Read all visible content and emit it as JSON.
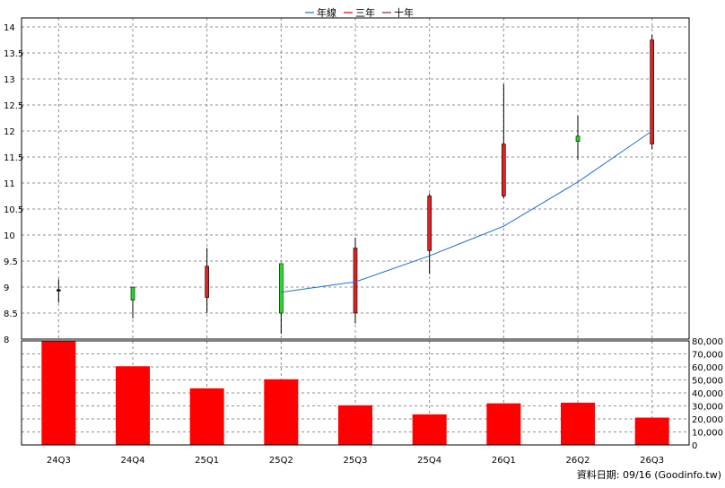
{
  "legend": [
    {
      "name": "年線",
      "color": "#1e6fd0"
    },
    {
      "name": "三年",
      "color": "#e00000"
    },
    {
      "name": "十年",
      "color": "#8b1a4a"
    }
  ],
  "footer": "資料日期: 09/16  (Goodinfo.tw)",
  "colors": {
    "up_candle": "#dd2222",
    "down_candle": "#22dd22",
    "volume_bar": "#ff0000",
    "ma_line": "#1e6fd0",
    "grid": "#909090"
  },
  "chart_data": [
    {
      "type": "candlestick",
      "categories": [
        "24Q3",
        "24Q4",
        "25Q1",
        "25Q2",
        "25Q3",
        "25Q4",
        "26Q1",
        "26Q2",
        "26Q3"
      ],
      "y_tick_labels": [
        "8",
        "8.5",
        "9",
        "9.5",
        "10",
        "10.5",
        "11",
        "11.5",
        "12",
        "12.5",
        "13",
        "13.5",
        "14"
      ],
      "ylim": [
        8,
        14
      ],
      "grid": true,
      "candles": [
        {
          "open": 8.95,
          "high": 9.15,
          "low": 8.7,
          "close": 8.95,
          "color": "neutral"
        },
        {
          "open": 8.75,
          "high": 9.0,
          "low": 8.4,
          "close": 9.0,
          "color": "green"
        },
        {
          "open": 8.8,
          "high": 9.75,
          "low": 8.5,
          "close": 9.4,
          "color": "red"
        },
        {
          "open": 9.45,
          "high": 9.45,
          "low": 8.1,
          "close": 8.5,
          "color": "green"
        },
        {
          "open": 8.5,
          "high": 9.95,
          "low": 8.3,
          "close": 9.75,
          "color": "red"
        },
        {
          "open": 9.7,
          "high": 10.8,
          "low": 9.25,
          "close": 10.75,
          "color": "red"
        },
        {
          "open": 10.75,
          "high": 12.9,
          "low": 10.7,
          "close": 11.75,
          "color": "red"
        },
        {
          "open": 11.9,
          "high": 12.3,
          "low": 11.45,
          "close": 11.8,
          "color": "green"
        },
        {
          "open": 11.75,
          "high": 13.85,
          "low": 11.65,
          "close": 13.75,
          "color": "red"
        }
      ],
      "moving_average": {
        "name": "年線",
        "values": [
          null,
          null,
          null,
          8.9,
          9.1,
          9.6,
          10.17,
          11.02,
          12.0
        ]
      }
    },
    {
      "type": "bar",
      "categories": [
        "24Q3",
        "24Q4",
        "25Q1",
        "25Q2",
        "25Q3",
        "25Q4",
        "26Q1",
        "26Q2",
        "26Q3"
      ],
      "values": [
        80000,
        60500,
        43500,
        50500,
        30500,
        23500,
        32000,
        32500,
        21000
      ],
      "y_tick_labels": [
        "0",
        "10,000",
        "20,000",
        "30,000",
        "40,000",
        "50,000",
        "60,000",
        "70,000",
        "80,000"
      ],
      "ylim": [
        0,
        80000
      ],
      "grid": true
    }
  ]
}
